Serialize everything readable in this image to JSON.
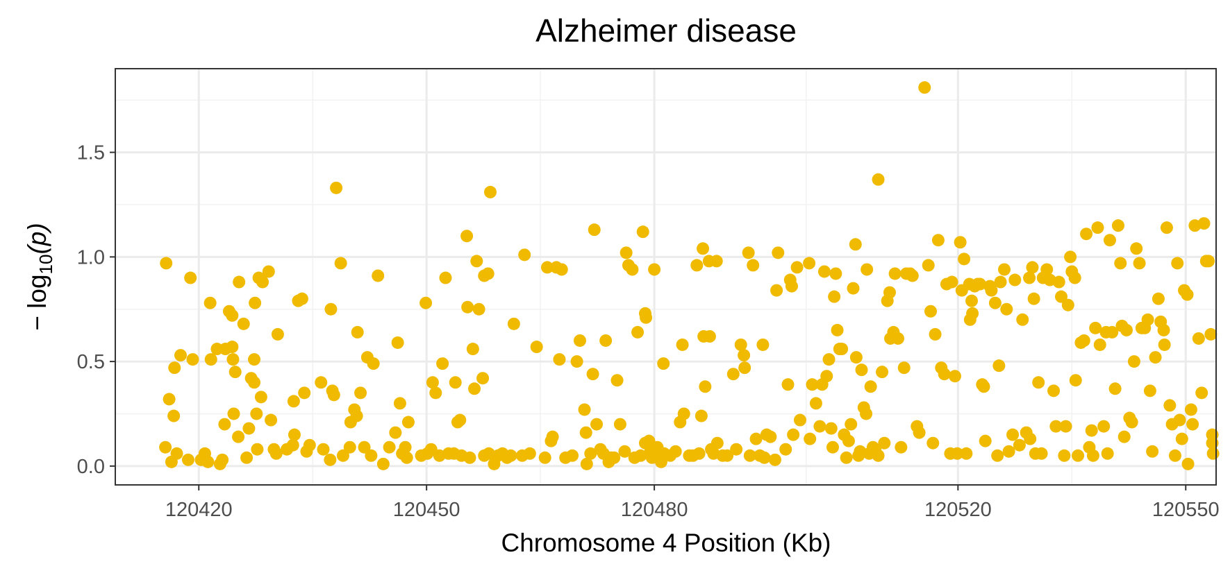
{
  "chart_data": {
    "type": "scatter",
    "title": "Alzheimer disease",
    "xlabel": "Chromosome 4 Position (Kb)",
    "ylabel_prefix": "− log",
    "ylabel_sub": "10",
    "ylabel_suffix": "(p)",
    "xlim": [
      120409,
      120554
    ],
    "ylim": [
      -0.09,
      1.9
    ],
    "x_ticks": [
      120420,
      120450,
      120480,
      120520,
      120550
    ],
    "x_tick_labels": [
      "120420",
      "120450",
      "120480",
      "120520",
      "120550"
    ],
    "x_minor_ticks": [
      120435,
      120465,
      120500,
      120535
    ],
    "y_ticks": [
      0,
      0.5,
      1.0,
      1.5
    ],
    "y_tick_labels": [
      "0.0",
      "0.5",
      "1.0",
      "1.5"
    ],
    "y_minor_ticks": [
      0.25,
      0.75,
      1.25,
      1.75
    ],
    "grid": true,
    "legend": "none",
    "point_color": "#F0BA00",
    "points": [
      [
        120415.7,
        0.97
      ],
      [
        120415.6,
        0.09
      ],
      [
        120416.1,
        0.32
      ],
      [
        120416.4,
        0.02
      ],
      [
        120416.7,
        0.24
      ],
      [
        120416.8,
        0.47
      ],
      [
        120417.1,
        0.06
      ],
      [
        120417.6,
        0.53
      ],
      [
        120418.6,
        0.03
      ],
      [
        120418.9,
        0.9
      ],
      [
        120419.2,
        0.51
      ],
      [
        120420.3,
        0.03
      ],
      [
        120420.8,
        0.06
      ],
      [
        120421.2,
        0.02
      ],
      [
        120421.5,
        0.78
      ],
      [
        120421.6,
        0.51
      ],
      [
        120422.4,
        0.56
      ],
      [
        120422.8,
        0.01
      ],
      [
        120423.1,
        0.03
      ],
      [
        120423.4,
        0.2
      ],
      [
        120423.5,
        0.56
      ],
      [
        120424,
        0.74
      ],
      [
        120424.4,
        0.72
      ],
      [
        120424.4,
        0.57
      ],
      [
        120424.5,
        0.51
      ],
      [
        120424.6,
        0.25
      ],
      [
        120424.8,
        0.45
      ],
      [
        120425.2,
        0.14
      ],
      [
        120425.3,
        0.88
      ],
      [
        120425.9,
        0.68
      ],
      [
        120426.3,
        0.04
      ],
      [
        120426.6,
        0.18
      ],
      [
        120426.9,
        0.42
      ],
      [
        120427.3,
        0.51
      ],
      [
        120427.3,
        0.4
      ],
      [
        120427.4,
        0.78
      ],
      [
        120427.6,
        0.25
      ],
      [
        120427.7,
        0.08
      ],
      [
        120427.9,
        0.9
      ],
      [
        120428.2,
        0.33
      ],
      [
        120428.4,
        0.88
      ],
      [
        120429.2,
        0.93
      ],
      [
        120429.5,
        0.22
      ],
      [
        120429.9,
        0.08
      ],
      [
        120430.2,
        0.06
      ],
      [
        120430.4,
        0.63
      ],
      [
        120431.6,
        0.08
      ],
      [
        120432.4,
        0.1
      ],
      [
        120432.5,
        0.31
      ],
      [
        120432.6,
        0.15
      ],
      [
        120433.1,
        0.79
      ],
      [
        120433.6,
        0.8
      ],
      [
        120433.9,
        0.35
      ],
      [
        120434.2,
        0.07
      ],
      [
        120434.6,
        0.1
      ],
      [
        120436.1,
        0.4
      ],
      [
        120436.4,
        0.08
      ],
      [
        120437.3,
        0.03
      ],
      [
        120437.4,
        0.75
      ],
      [
        120437.6,
        0.36
      ],
      [
        120437.8,
        0.34
      ],
      [
        120438.1,
        1.33
      ],
      [
        120438.7,
        0.97
      ],
      [
        120439,
        0.05
      ],
      [
        120439.9,
        0.09
      ],
      [
        120440,
        0.21
      ],
      [
        120440.5,
        0.27
      ],
      [
        120440.8,
        0.24
      ],
      [
        120440.9,
        0.64
      ],
      [
        120441.3,
        0.35
      ],
      [
        120441.8,
        0.09
      ],
      [
        120442.2,
        0.52
      ],
      [
        120442.7,
        0.05
      ],
      [
        120443,
        0.49
      ],
      [
        120443.6,
        0.91
      ],
      [
        120444.3,
        0.01
      ],
      [
        120445.1,
        0.09
      ],
      [
        120445.9,
        0.16
      ],
      [
        120446.2,
        0.59
      ],
      [
        120446.5,
        0.3
      ],
      [
        120446.8,
        0.06
      ],
      [
        120447.2,
        0.09
      ],
      [
        120447.4,
        0.04
      ],
      [
        120447.6,
        0.21
      ],
      [
        120449.3,
        0.05
      ],
      [
        120449.9,
        0.78
      ],
      [
        120450.1,
        0.06
      ],
      [
        120450.6,
        0.08
      ],
      [
        120450.8,
        0.4
      ],
      [
        120451.2,
        0.35
      ],
      [
        120451.7,
        0.05
      ],
      [
        120452.1,
        0.49
      ],
      [
        120452.5,
        0.9
      ],
      [
        120452.9,
        0.06
      ],
      [
        120453.6,
        0.06
      ],
      [
        120453.8,
        0.4
      ],
      [
        120454.1,
        0.21
      ],
      [
        120454.4,
        0.22
      ],
      [
        120454.6,
        0.05
      ],
      [
        120455.3,
        1.1
      ],
      [
        120455.4,
        0.76
      ],
      [
        120455.7,
        0.04
      ],
      [
        120456.1,
        0.56
      ],
      [
        120456.3,
        0.37
      ],
      [
        120456.6,
        0.98
      ],
      [
        120456.9,
        0.75
      ],
      [
        120457.4,
        0.42
      ],
      [
        120457.6,
        0.05
      ],
      [
        120457.6,
        0.91
      ],
      [
        120458.1,
        0.92
      ],
      [
        120458.2,
        0.06
      ],
      [
        120458.4,
        1.31
      ],
      [
        120458.9,
        0.01
      ],
      [
        120459.4,
        0.05
      ],
      [
        120460,
        0.06
      ],
      [
        120460.6,
        0.04
      ],
      [
        120461.1,
        0.05
      ],
      [
        120461.5,
        0.68
      ],
      [
        120462.6,
        0.05
      ],
      [
        120462.9,
        1.01
      ],
      [
        120463.6,
        0.06
      ],
      [
        120464.5,
        0.57
      ],
      [
        120465.6,
        0.04
      ],
      [
        120465.9,
        0.95
      ],
      [
        120466.4,
        0.12
      ],
      [
        120466.6,
        0.14
      ],
      [
        120467.1,
        0.95
      ],
      [
        120467.5,
        0.51
      ],
      [
        120467.8,
        0.94
      ],
      [
        120468.3,
        0.04
      ],
      [
        120469.2,
        0.05
      ],
      [
        120469.8,
        0.5
      ],
      [
        120470.2,
        0.6
      ],
      [
        120470.8,
        0.27
      ],
      [
        120471,
        0.16
      ],
      [
        120471.1,
        0.01
      ],
      [
        120471.6,
        0.06
      ],
      [
        120471.9,
        0.44
      ],
      [
        120472.1,
        1.13
      ],
      [
        120472.4,
        0.2
      ],
      [
        120472.9,
        0.08
      ],
      [
        120473.3,
        0.06
      ],
      [
        120473.6,
        0.6
      ],
      [
        120474,
        0.02
      ],
      [
        120474.3,
        0.04
      ],
      [
        120474.7,
        0.04
      ],
      [
        120475.1,
        0.41
      ],
      [
        120475.5,
        0.2
      ],
      [
        120476.1,
        0.07
      ],
      [
        120476.3,
        1.02
      ],
      [
        120476.6,
        0.96
      ],
      [
        120477.1,
        0.94
      ],
      [
        120477.4,
        0.04
      ],
      [
        120477.8,
        0.64
      ],
      [
        120478.2,
        0.05
      ],
      [
        120478.5,
        1.12
      ],
      [
        120478.8,
        0.11
      ],
      [
        120478.8,
        0.73
      ],
      [
        120478.9,
        0.71
      ],
      [
        120479.3,
        0.12
      ],
      [
        120479.5,
        0.07
      ],
      [
        120479.7,
        0.04
      ],
      [
        120480,
        0.94
      ],
      [
        120480.4,
        0.09
      ],
      [
        120480.6,
        0.06
      ],
      [
        120480.9,
        0.02
      ],
      [
        120481.2,
        0.49
      ],
      [
        120481.3,
        0.06
      ],
      [
        120482.1,
        0.05
      ],
      [
        120482.8,
        0.07
      ],
      [
        120483.4,
        0.21
      ],
      [
        120483.7,
        0.58
      ],
      [
        120483.9,
        0.25
      ],
      [
        120484.6,
        0.05
      ],
      [
        120485.1,
        0.05
      ],
      [
        120485.6,
        0.96
      ],
      [
        120485.9,
        0.06
      ],
      [
        120486.2,
        0.24
      ],
      [
        120486.4,
        1.04
      ],
      [
        120486.5,
        0.62
      ],
      [
        120486.7,
        0.38
      ],
      [
        120487.2,
        0.98
      ],
      [
        120487.3,
        0.62
      ],
      [
        120487.5,
        0.08
      ],
      [
        120487.8,
        0.06
      ],
      [
        120488.2,
        0.98
      ],
      [
        120488.3,
        0.11
      ],
      [
        120489,
        0.05
      ],
      [
        120489.6,
        0.05
      ],
      [
        120490.4,
        0.44
      ],
      [
        120490.8,
        0.08
      ],
      [
        120491.4,
        0.58
      ],
      [
        120491.8,
        0.53
      ],
      [
        120491.9,
        0.47
      ],
      [
        120492.4,
        1.02
      ],
      [
        120492.6,
        0.05
      ],
      [
        120493,
        0.96
      ],
      [
        120493.4,
        0.13
      ],
      [
        120493.9,
        0.05
      ],
      [
        120494.3,
        0.58
      ],
      [
        120494.5,
        0.04
      ],
      [
        120494.8,
        0.15
      ],
      [
        120495.3,
        0.14
      ],
      [
        120495.9,
        0.03
      ],
      [
        120496.1,
        0.84
      ],
      [
        120496.3,
        1.02
      ],
      [
        120497.3,
        0.08
      ],
      [
        120497.6,
        0.39
      ],
      [
        120497.9,
        0.89
      ],
      [
        120498.1,
        0.86
      ],
      [
        120498.3,
        0.15
      ],
      [
        120498.8,
        0.95
      ],
      [
        120499.2,
        0.22
      ],
      [
        120500.4,
        0.97
      ],
      [
        120500.5,
        0.13
      ],
      [
        120500.8,
        0.39
      ],
      [
        120501.3,
        0.3
      ],
      [
        120501.8,
        0.19
      ],
      [
        120502.1,
        0.39
      ],
      [
        120502.4,
        0.93
      ],
      [
        120502.7,
        0.43
      ],
      [
        120503,
        0.51
      ],
      [
        120503.3,
        0.18
      ],
      [
        120503.5,
        0.09
      ],
      [
        120503.7,
        0.81
      ],
      [
        120503.9,
        0.92
      ],
      [
        120504.1,
        0.65
      ],
      [
        120504.4,
        0.56
      ],
      [
        120504.7,
        0.56
      ],
      [
        120505,
        0.15
      ],
      [
        120505.3,
        0.04
      ],
      [
        120505.6,
        0.12
      ],
      [
        120505.9,
        0.2
      ],
      [
        120506.2,
        0.85
      ],
      [
        120506.5,
        1.06
      ],
      [
        120506.6,
        0.52
      ],
      [
        120506.9,
        0.05
      ],
      [
        120507.1,
        0.07
      ],
      [
        120507.3,
        0.46
      ],
      [
        120507.6,
        0.28
      ],
      [
        120507.9,
        0.25
      ],
      [
        120508,
        0.94
      ],
      [
        120508.3,
        0.06
      ],
      [
        120508.5,
        0.38
      ],
      [
        120508.8,
        0.09
      ],
      [
        120509.1,
        0.08
      ],
      [
        120509.5,
        1.37
      ],
      [
        120509.5,
        0.05
      ],
      [
        120510,
        0.45
      ],
      [
        120510.3,
        0.11
      ],
      [
        120510.7,
        0.79
      ],
      [
        120511,
        0.83
      ],
      [
        120511.1,
        0.61
      ],
      [
        120511.5,
        0.64
      ],
      [
        120511.7,
        0.92
      ],
      [
        120512.1,
        0.61
      ],
      [
        120512.5,
        0.09
      ],
      [
        120512.9,
        0.47
      ],
      [
        120513.2,
        0.92
      ],
      [
        120513.7,
        0.92
      ],
      [
        120514,
        0.91
      ],
      [
        120514.6,
        0.19
      ],
      [
        120514.9,
        0.16
      ],
      [
        120515.6,
        1.81
      ],
      [
        120516.1,
        0.96
      ],
      [
        120516.4,
        0.74
      ],
      [
        120516.7,
        0.11
      ],
      [
        120517,
        0.63
      ],
      [
        120517.4,
        1.08
      ],
      [
        120517.8,
        0.47
      ],
      [
        120518.2,
        0.44
      ],
      [
        120518.5,
        0.87
      ],
      [
        120519,
        0.06
      ],
      [
        120519.2,
        0.88
      ],
      [
        120519.6,
        0.43
      ],
      [
        120519.9,
        0.06
      ],
      [
        120520.3,
        1.07
      ],
      [
        120520.5,
        0.84
      ],
      [
        120520.8,
        0.99
      ],
      [
        120521.1,
        0.06
      ],
      [
        120521.5,
        0.87
      ],
      [
        120521.6,
        0.7
      ],
      [
        120521.8,
        0.79
      ],
      [
        120521.9,
        0.73
      ],
      [
        120522.2,
        0.86
      ],
      [
        120522.6,
        0.87
      ],
      [
        120522.9,
        0.87
      ],
      [
        120523.2,
        0.39
      ],
      [
        120523.4,
        0.38
      ],
      [
        120523.6,
        0.12
      ],
      [
        120524.2,
        0.86
      ],
      [
        120524.4,
        0.84
      ],
      [
        120524.9,
        0.78
      ],
      [
        120525.2,
        0.05
      ],
      [
        120525.4,
        0.48
      ],
      [
        120525.6,
        0.88
      ],
      [
        120526.1,
        0.94
      ],
      [
        120526.4,
        0.75
      ],
      [
        120526.7,
        0.07
      ],
      [
        120527.2,
        0.15
      ],
      [
        120527.5,
        0.89
      ],
      [
        120528.1,
        0.1
      ],
      [
        120528.5,
        0.7
      ],
      [
        120529,
        0.16
      ],
      [
        120529.4,
        0.9
      ],
      [
        120529.5,
        0.13
      ],
      [
        120529.8,
        0.95
      ],
      [
        120530,
        0.8
      ],
      [
        120530.2,
        0.06
      ],
      [
        120530.6,
        0.4
      ],
      [
        120531,
        0.06
      ],
      [
        120531.2,
        0.9
      ],
      [
        120531.7,
        0.94
      ],
      [
        120532.1,
        0.89
      ],
      [
        120532.6,
        0.36
      ],
      [
        120532.9,
        0.19
      ],
      [
        120533.3,
        0.88
      ],
      [
        120533.6,
        0.81
      ],
      [
        120534,
        0.05
      ],
      [
        120534.2,
        0.19
      ],
      [
        120534.5,
        0.77
      ],
      [
        120534.8,
        1.0
      ],
      [
        120535,
        0.93
      ],
      [
        120535.4,
        0.9
      ],
      [
        120535.5,
        0.41
      ],
      [
        120535.8,
        0.05
      ],
      [
        120536.2,
        0.59
      ],
      [
        120536.6,
        0.6
      ],
      [
        120536.9,
        1.11
      ],
      [
        120537.3,
        0.09
      ],
      [
        120537.6,
        0.17
      ],
      [
        120537.8,
        0.05
      ],
      [
        120538.1,
        0.66
      ],
      [
        120538.4,
        1.14
      ],
      [
        120538.7,
        0.58
      ],
      [
        120539.2,
        0.19
      ],
      [
        120539.5,
        0.64
      ],
      [
        120539.7,
        0.06
      ],
      [
        120540,
        1.08
      ],
      [
        120540.3,
        0.64
      ],
      [
        120540.7,
        0.37
      ],
      [
        120541.1,
        1.15
      ],
      [
        120541.4,
        0.97
      ],
      [
        120541.6,
        0.67
      ],
      [
        120541.9,
        0.14
      ],
      [
        120542.2,
        0.65
      ],
      [
        120542.6,
        0.23
      ],
      [
        120542.9,
        0.21
      ],
      [
        120543.2,
        0.5
      ],
      [
        120543.5,
        1.04
      ],
      [
        120543.9,
        0.97
      ],
      [
        120544.2,
        0.66
      ],
      [
        120544.6,
        0.66
      ],
      [
        120545,
        0.7
      ],
      [
        120545.3,
        0.36
      ],
      [
        120545.6,
        0.07
      ],
      [
        120546,
        0.52
      ],
      [
        120546.4,
        0.8
      ],
      [
        120546.7,
        0.69
      ],
      [
        120547.1,
        0.65
      ],
      [
        120547.2,
        0.58
      ],
      [
        120547.5,
        1.14
      ],
      [
        120547.9,
        0.29
      ],
      [
        120548.2,
        0.2
      ],
      [
        120548.6,
        0.05
      ],
      [
        120548.9,
        0.97
      ],
      [
        120549.2,
        0.22
      ],
      [
        120549.5,
        0.13
      ],
      [
        120549.8,
        0.84
      ],
      [
        120550.2,
        0.82
      ],
      [
        120550.3,
        0.01
      ],
      [
        120550.7,
        0.27
      ],
      [
        120550.9,
        0.2
      ],
      [
        120551.2,
        1.15
      ],
      [
        120551.7,
        0.61
      ],
      [
        120552.1,
        0.35
      ],
      [
        120552.4,
        1.16
      ],
      [
        120552.7,
        0.98
      ],
      [
        120553,
        0.98
      ],
      [
        120553.3,
        0.63
      ],
      [
        120553.5,
        0.11
      ],
      [
        120553.5,
        0.15
      ],
      [
        120553.6,
        0.06
      ]
    ]
  }
}
